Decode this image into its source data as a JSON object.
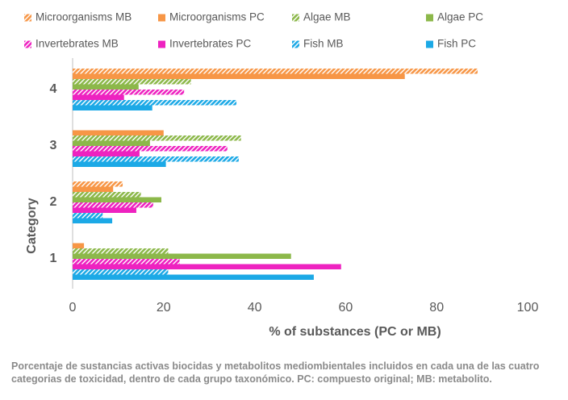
{
  "chart_data": {
    "type": "hbar",
    "y_label": "Category",
    "x_label": "% of substances (PC or MB)",
    "caption": "Porcentaje de sustancias activas biocidas y metabolitos mediombientales incluidos en cada una de las cuatro categorias de toxicidad, dentro de cada grupo taxonómico. PC: compuesto original; MB: metabolito.",
    "categories": [
      "1",
      "2",
      "3",
      "4"
    ],
    "xlim": [
      0,
      100
    ],
    "xticks": [
      0,
      20,
      40,
      60,
      80,
      100
    ],
    "grid": false,
    "legend": "top",
    "series": [
      {
        "name": "Microorganisms MB",
        "color": "#f79646",
        "hatched": true,
        "values": [
          0,
          11,
          0,
          89
        ]
      },
      {
        "name": "Microorganisms PC",
        "color": "#f79646",
        "hatched": false,
        "values": [
          2.5,
          8.9,
          20,
          73
        ]
      },
      {
        "name": "Algae MB",
        "color": "#8cb84a",
        "hatched": true,
        "values": [
          21,
          15,
          37,
          26
        ]
      },
      {
        "name": "Algae PC",
        "color": "#8cb84a",
        "hatched": false,
        "values": [
          48,
          19.5,
          17,
          14.5
        ]
      },
      {
        "name": "Invertebrates MB",
        "color": "#ee22c0",
        "hatched": true,
        "values": [
          23.5,
          17.7,
          34,
          24.5
        ]
      },
      {
        "name": "Invertebrates PC",
        "color": "#ee22c0",
        "hatched": false,
        "values": [
          59,
          14,
          14.7,
          11.3
        ]
      },
      {
        "name": "Fish MB",
        "color": "#1ca9e6",
        "hatched": true,
        "values": [
          21,
          6.6,
          36.5,
          36
        ]
      },
      {
        "name": "Fish PC",
        "color": "#1ca9e6",
        "hatched": false,
        "values": [
          53,
          8.7,
          20.5,
          17.5
        ]
      }
    ]
  }
}
